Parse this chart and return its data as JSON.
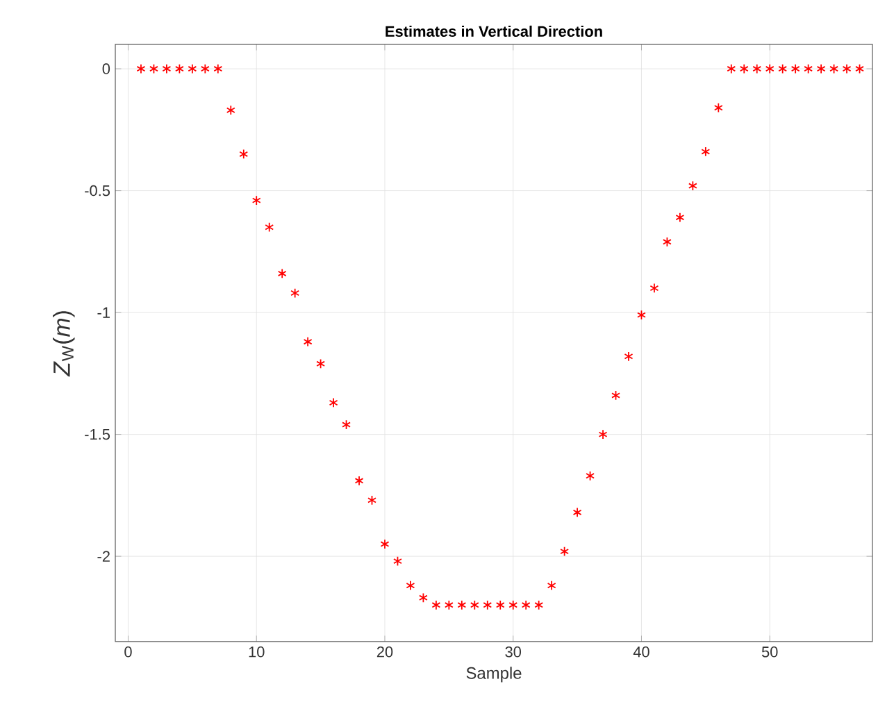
{
  "chart_data": {
    "type": "scatter",
    "title": "Estimates in Vertical Direction",
    "xlabel": "Sample",
    "ylabel": "*Z*$_{W}$(*m*)",
    "x": [
      1,
      2,
      3,
      4,
      5,
      6,
      7,
      8,
      9,
      10,
      11,
      12,
      13,
      14,
      15,
      16,
      17,
      18,
      19,
      20,
      21,
      22,
      23,
      24,
      25,
      26,
      27,
      28,
      29,
      30,
      31,
      32,
      33,
      34,
      35,
      36,
      37,
      38,
      39,
      40,
      41,
      42,
      43,
      44,
      45,
      46,
      47,
      48,
      49,
      50,
      51,
      52,
      53,
      54,
      55,
      56,
      57
    ],
    "series": [
      {
        "color": "#ff0000",
        "values": [
          0,
          0,
          0,
          0,
          0,
          0,
          0,
          -0.17,
          -0.35,
          -0.54,
          -0.65,
          -0.84,
          -0.92,
          -1.12,
          -1.21,
          -1.37,
          -1.46,
          -1.69,
          -1.77,
          -1.95,
          -2.02,
          -2.12,
          -2.17,
          -2.2,
          -2.2,
          -2.2,
          -2.2,
          -2.2,
          -2.2,
          -2.2,
          -2.2,
          -2.2,
          -2.12,
          -1.98,
          -1.82,
          -1.67,
          -1.5,
          -1.34,
          -1.18,
          -1.01,
          -0.9,
          -0.71,
          -0.61,
          -0.48,
          -0.34,
          -0.16,
          0,
          0,
          0,
          0,
          0,
          0,
          0,
          0,
          0,
          0,
          0
        ]
      }
    ],
    "xlim": [
      -1,
      58
    ],
    "ylim": [
      -2.35,
      0.1
    ],
    "xticks": [
      0,
      10,
      20,
      30,
      40,
      50
    ],
    "yticks": [
      0,
      -0.5,
      -1,
      -1.5,
      -2
    ],
    "grid": true,
    "marker": "cross"
  }
}
